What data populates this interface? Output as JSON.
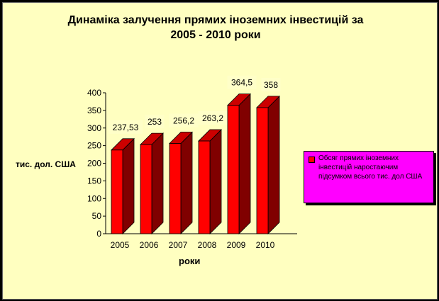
{
  "chart_data": {
    "type": "bar",
    "title_line1": "Динаміка залучення прямих іноземних інвестицій за",
    "title_line2": "2005 - 2010 роки",
    "xlabel": "роки",
    "ylabel": "тис. дол. США",
    "categories": [
      "2005",
      "2006",
      "2007",
      "2008",
      "2009",
      "2010"
    ],
    "series": [
      {
        "name": "Обсяг прямих іноземних інвестицій наростаючим підсумком всього тис. дол США",
        "values": [
          237.53,
          253,
          256.2,
          263.2,
          364.5,
          358
        ],
        "data_labels": [
          "237,53",
          "253",
          "256,2",
          "263,2",
          "364,5",
          "358"
        ]
      }
    ],
    "ylim": [
      0,
      400
    ],
    "yticks": [
      0,
      50,
      100,
      150,
      200,
      250,
      300,
      350,
      400
    ],
    "grid": false,
    "legend_position": "right",
    "colors": {
      "bar_front": "#FF0000",
      "bar_side": "#800000",
      "bar_top": "#CC0000",
      "background": "#FFFFC0",
      "legend_bg": "#FF00FF",
      "data_label_bg": "#FFFFC8"
    }
  }
}
